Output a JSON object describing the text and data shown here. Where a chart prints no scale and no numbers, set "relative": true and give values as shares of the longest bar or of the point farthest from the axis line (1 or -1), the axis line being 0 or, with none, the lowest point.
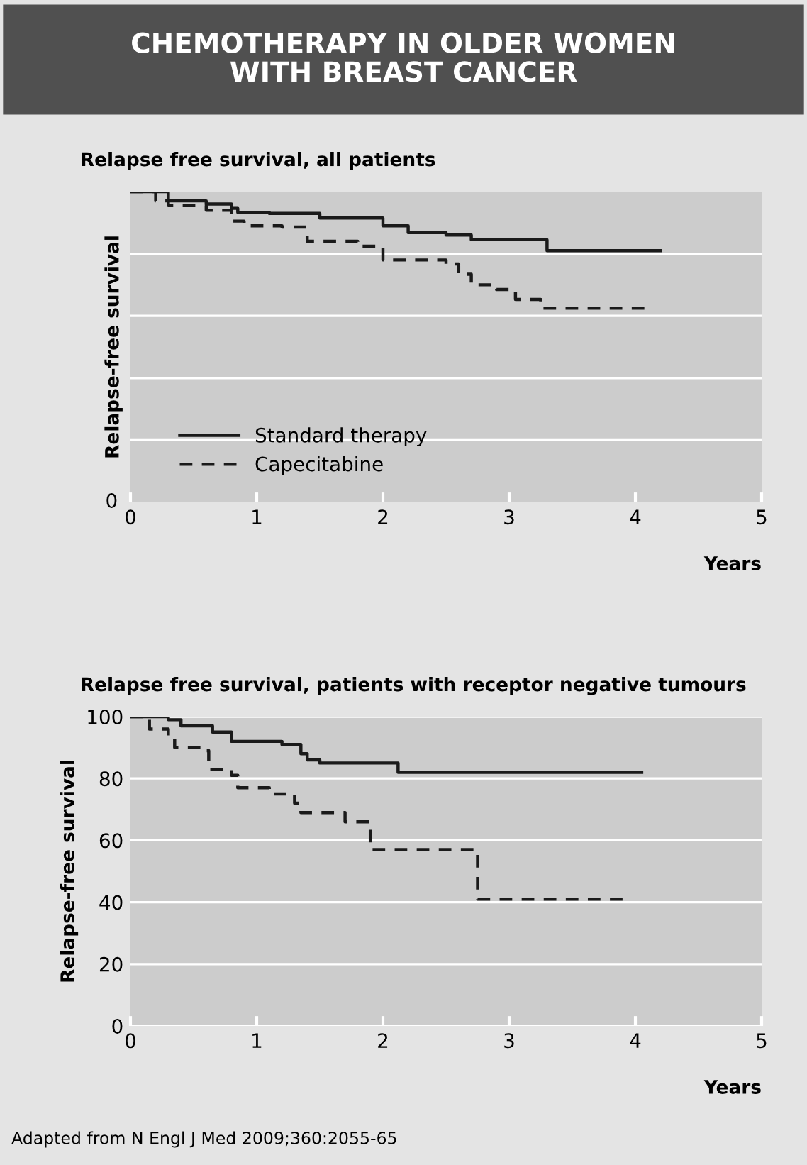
{
  "chart_data": [
    {
      "type": "step",
      "title": "CHEMOTHERAPY IN OLDER WOMEN\nWITH BREAST CANCER",
      "subtitle": "Relapse free survival, all patients",
      "ylabel": "Relapse-free survival",
      "xlabel": "Years",
      "relative": true,
      "xlim": [
        0,
        5
      ],
      "xticks": [
        0,
        1,
        2,
        3,
        4,
        5
      ],
      "grid": "y",
      "legend": "bottom left",
      "annotations": [
        "0"
      ],
      "series": [
        {
          "name": "Standard therapy",
          "color": "#1a1a1a",
          "line_style": "solid",
          "x": [
            0,
            0.3,
            0.6,
            0.8,
            0.85,
            1.1,
            1.5,
            2.0,
            2.2,
            2.5,
            2.7,
            3.3,
            4.2
          ],
          "values": [
            1.0,
            0.97,
            0.96,
            0.946,
            0.933,
            0.93,
            0.915,
            0.89,
            0.868,
            0.86,
            0.845,
            0.81,
            0.81
          ]
        },
        {
          "name": "Capecitabine",
          "color": "#1a1a1a",
          "line_style": "dashed",
          "x": [
            0,
            0.2,
            0.3,
            0.6,
            0.8,
            0.9,
            1.2,
            1.4,
            1.8,
            2.0,
            2.5,
            2.6,
            2.7,
            2.9,
            3.05,
            3.25,
            4.1
          ],
          "values": [
            1.0,
            0.97,
            0.955,
            0.94,
            0.905,
            0.89,
            0.886,
            0.84,
            0.824,
            0.78,
            0.767,
            0.734,
            0.7,
            0.685,
            0.653,
            0.625,
            0.625
          ]
        }
      ]
    },
    {
      "type": "step",
      "subtitle": "Relapse free survival, patients with receptor negative tumours",
      "ylabel": "Relapse-free survival",
      "xlabel": "Years",
      "xlim": [
        0,
        5
      ],
      "xticks": [
        0,
        1,
        2,
        3,
        4,
        5
      ],
      "ylim": [
        0,
        100
      ],
      "yticks": [
        0,
        20,
        40,
        60,
        80,
        100
      ],
      "grid": "y",
      "annotations": [
        "Adapted from N Engl J Med 2009;360:2055-65"
      ],
      "series": [
        {
          "color": "#1a1a1a",
          "line_style": "solid",
          "x": [
            0,
            0.3,
            0.4,
            0.65,
            0.8,
            1.2,
            1.35,
            1.4,
            1.5,
            2.12,
            4.05
          ],
          "values": [
            100,
            99,
            97,
            95,
            92,
            91,
            88,
            86,
            85,
            82,
            82
          ]
        },
        {
          "color": "#1a1a1a",
          "line_style": "dashed",
          "x": [
            0,
            0.15,
            0.3,
            0.35,
            0.6,
            0.62,
            0.8,
            0.85,
            1.1,
            1.3,
            1.35,
            1.7,
            1.9,
            2.75,
            3.9
          ],
          "values": [
            100,
            96,
            93,
            90,
            89,
            83,
            81,
            77,
            75,
            72,
            69,
            66,
            57,
            41,
            41
          ]
        }
      ]
    }
  ]
}
